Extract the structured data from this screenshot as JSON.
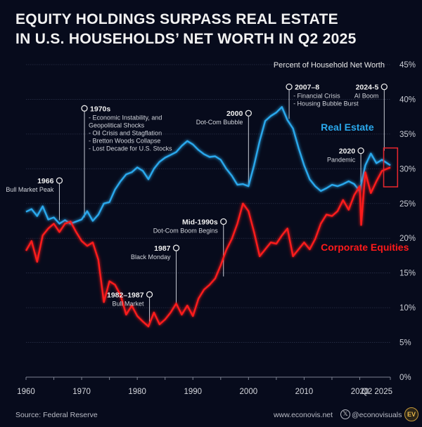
{
  "header": {
    "title_line1": "EQUITY HOLDINGS SURPASS REAL ESTATE",
    "title_line2": "IN U.S. HOUSEHOLDS’ NET WORTH IN Q2 2025"
  },
  "footer": {
    "source": "Source: Federal Reserve",
    "website": "www.econovis.net",
    "social_icon": "x-logo-icon",
    "social_handle": "@econovisuals",
    "logo_text": "EV"
  },
  "colors": {
    "background": "#070b1c",
    "real_estate": "#2aa8ec",
    "equities": "#ff1a1a",
    "highlight_box": "#e0262e",
    "grid": "#2a3048",
    "text_muted": "#c9ccd4"
  },
  "chart_data": {
    "type": "line",
    "title": "Equity Holdings Surpass Real Estate in U.S. Households' Net Worth in Q2 2025",
    "ylabel": "Percent of Household Net Worth",
    "xlabel": "",
    "ylim": [
      0,
      45
    ],
    "xlim": [
      1960,
      2025.5
    ],
    "grid": true,
    "y_ticks": [
      "0%",
      "5%",
      "10%",
      "15%",
      "20%",
      "25%",
      "30%",
      "35%",
      "40%",
      "45%"
    ],
    "y_tick_values": [
      0,
      5,
      10,
      15,
      20,
      25,
      30,
      35,
      40,
      45
    ],
    "x_ticks": [
      "1960",
      "1970",
      "1980",
      "1990",
      "2000",
      "2010",
      "2020",
      "Q2 2025"
    ],
    "x_tick_values": [
      1960,
      1970,
      1980,
      1990,
      2000,
      2010,
      2020,
      2025.5
    ],
    "x_minor_ticks": [
      1965,
      1975,
      1985,
      1995,
      2005,
      2015
    ],
    "series": [
      {
        "name": "Real Estate",
        "color": "#2aa8ec",
        "x": [
          1960,
          1961,
          1962,
          1963,
          1964,
          1965,
          1966,
          1967,
          1968,
          1969,
          1970,
          1971,
          1972,
          1973,
          1974,
          1975,
          1976,
          1977,
          1978,
          1979,
          1980,
          1981,
          1982,
          1983,
          1984,
          1985,
          1986,
          1987,
          1988,
          1989,
          1990,
          1991,
          1992,
          1993,
          1994,
          1995,
          1996,
          1997,
          1998,
          1999,
          2000,
          2001,
          2002,
          2003,
          2004,
          2005,
          2006,
          2007,
          2008,
          2009,
          2010,
          2011,
          2012,
          2013,
          2014,
          2015,
          2016,
          2017,
          2018,
          2019,
          2020,
          2021,
          2022,
          2023,
          2024,
          2025.5
        ],
        "values": [
          23.8,
          24.2,
          23.2,
          24.6,
          22.7,
          23.0,
          22.1,
          22.6,
          22.1,
          22.4,
          22.7,
          23.9,
          22.5,
          23.4,
          25.0,
          25.2,
          27.0,
          28.2,
          29.2,
          29.5,
          30.2,
          29.7,
          28.5,
          30.0,
          31.0,
          31.6,
          32.0,
          32.4,
          33.3,
          34.0,
          33.5,
          32.7,
          32.1,
          31.7,
          31.8,
          31.3,
          30.0,
          29.0,
          27.7,
          27.8,
          27.5,
          30.5,
          34.0,
          36.9,
          37.6,
          38.1,
          38.9,
          37.0,
          35.8,
          33.0,
          30.5,
          28.5,
          27.5,
          26.8,
          27.2,
          27.7,
          27.5,
          27.8,
          28.2,
          27.8,
          26.8,
          30.5,
          32.2,
          30.8,
          31.3,
          30.5
        ]
      },
      {
        "name": "Corporate Equities",
        "color": "#ff1a1a",
        "x": [
          1960,
          1961,
          1962,
          1963,
          1964,
          1965,
          1966,
          1967,
          1968,
          1969,
          1970,
          1971,
          1972,
          1973,
          1974,
          1975,
          1976,
          1977,
          1978,
          1979,
          1980,
          1981,
          1982,
          1983,
          1984,
          1985,
          1986,
          1987,
          1988,
          1989,
          1990,
          1991,
          1992,
          1993,
          1994,
          1995,
          1996,
          1997,
          1998,
          1999,
          2000,
          2001,
          2002,
          2003,
          2004,
          2005,
          2006,
          2007,
          2008,
          2009,
          2010,
          2011,
          2012,
          2013,
          2014,
          2015,
          2016,
          2017,
          2018,
          2019,
          2020,
          2020.25,
          2021,
          2022,
          2023,
          2024,
          2025.5
        ],
        "values": [
          18.2,
          19.6,
          16.6,
          20.4,
          21.4,
          22.1,
          20.9,
          22.1,
          22.4,
          20.9,
          19.6,
          18.9,
          19.4,
          16.9,
          10.8,
          13.8,
          13.3,
          11.8,
          9.0,
          10.3,
          8.8,
          8.0,
          7.3,
          9.3,
          7.6,
          8.3,
          9.3,
          10.6,
          9.0,
          10.3,
          8.8,
          11.3,
          12.6,
          13.3,
          14.2,
          16.1,
          18.3,
          19.9,
          22.1,
          25.0,
          23.9,
          20.9,
          17.4,
          18.4,
          19.4,
          19.2,
          20.4,
          21.4,
          17.4,
          18.4,
          19.4,
          18.4,
          19.9,
          22.1,
          23.4,
          23.2,
          23.9,
          25.5,
          24.1,
          26.2,
          27.5,
          21.9,
          29.5,
          26.5,
          28.2,
          29.7,
          30.2
        ]
      }
    ],
    "series_labels": [
      {
        "text": "Real Estate",
        "series": "Real Estate",
        "x": 2013,
        "y": 35.5
      },
      {
        "text": "Corporate Equities",
        "series": "Corporate Equities",
        "x": 2013,
        "y": 18.2
      }
    ],
    "annotations": [
      {
        "year": 1966,
        "label": "1966",
        "lines": [
          "Bull Market Peak"
        ],
        "marker_value": 28.3,
        "anchor_value": 22.6,
        "align": "left"
      },
      {
        "year": 1970.5,
        "label": "1970s",
        "lines": [
          "- Economic Instability, and",
          "  Geopolitical Shocks",
          "- Oil Crisis and Stagflation",
          "- Bretton Woods Collapse",
          "- Lost Decade for U.S. Stocks"
        ],
        "marker_value": 38.7,
        "anchor_value": 23.0,
        "align": "right"
      },
      {
        "year": 1982.2,
        "label": "1982–1987",
        "lines": [
          "Bull Market"
        ],
        "marker_value": 11.9,
        "anchor_value": 7.5,
        "align": "left"
      },
      {
        "year": 1987,
        "label": "1987",
        "lines": [
          "Black Monday"
        ],
        "marker_value": 18.6,
        "anchor_value": 10.6,
        "align": "left"
      },
      {
        "year": 1995.5,
        "label": "Mid-1990s",
        "lines": [
          "Dot-Com Boom Begins"
        ],
        "marker_value": 22.4,
        "anchor_value": 14.5,
        "align": "left"
      },
      {
        "year": 2000,
        "label": "2000",
        "lines": [
          "Dot-Com Bubble"
        ],
        "marker_value": 38.0,
        "anchor_value": 27.5,
        "align": "left"
      },
      {
        "year": 2007.3,
        "label": "2007–8",
        "lines": [
          "- Financial Crisis",
          "- Housing Bubble Burst"
        ],
        "marker_value": 41.8,
        "anchor_value": 37.2,
        "align": "right"
      },
      {
        "year": 2020.2,
        "label": "2020",
        "lines": [
          "Pandemic"
        ],
        "marker_value": 32.6,
        "anchor_value": 28.0,
        "align": "left"
      },
      {
        "year": 2024.4,
        "label": "2024-5",
        "lines": [
          "AI Boom"
        ],
        "marker_value": 41.8,
        "anchor_value": 32.6,
        "align": "left"
      }
    ],
    "highlight_box": {
      "x_range": [
        2024.3,
        2026.8
      ],
      "y_range": [
        27.4,
        33.0
      ]
    }
  }
}
